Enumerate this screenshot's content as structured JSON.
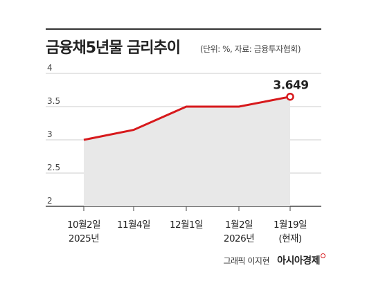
{
  "title": "금융채5년물 금리추이",
  "subtitle": "(단위: %, 자료: 금융투자협회)",
  "credit": {
    "text": "그래픽 이지현",
    "brand": "아시아경제"
  },
  "colors": {
    "line": "#d7191c",
    "area": "#e8e8e8",
    "grid": "#cccccc",
    "text": "#222222"
  },
  "chart_data": {
    "type": "area",
    "categories": [
      "10월2일",
      "11월4일",
      "12월1일",
      "1월2일",
      "1월19일"
    ],
    "category_sublabels": [
      "2025년",
      "",
      "",
      "2026년",
      "(현재)"
    ],
    "values": [
      3.0,
      3.15,
      3.5,
      3.5,
      3.649
    ],
    "data_labels": [
      "",
      "",
      "",
      "",
      "3.649"
    ],
    "y_ticks": [
      "4",
      "3.5",
      "3",
      "2.5",
      "2"
    ],
    "ylim": [
      2,
      4
    ],
    "xlabel": "",
    "ylabel": "",
    "grid": true
  }
}
